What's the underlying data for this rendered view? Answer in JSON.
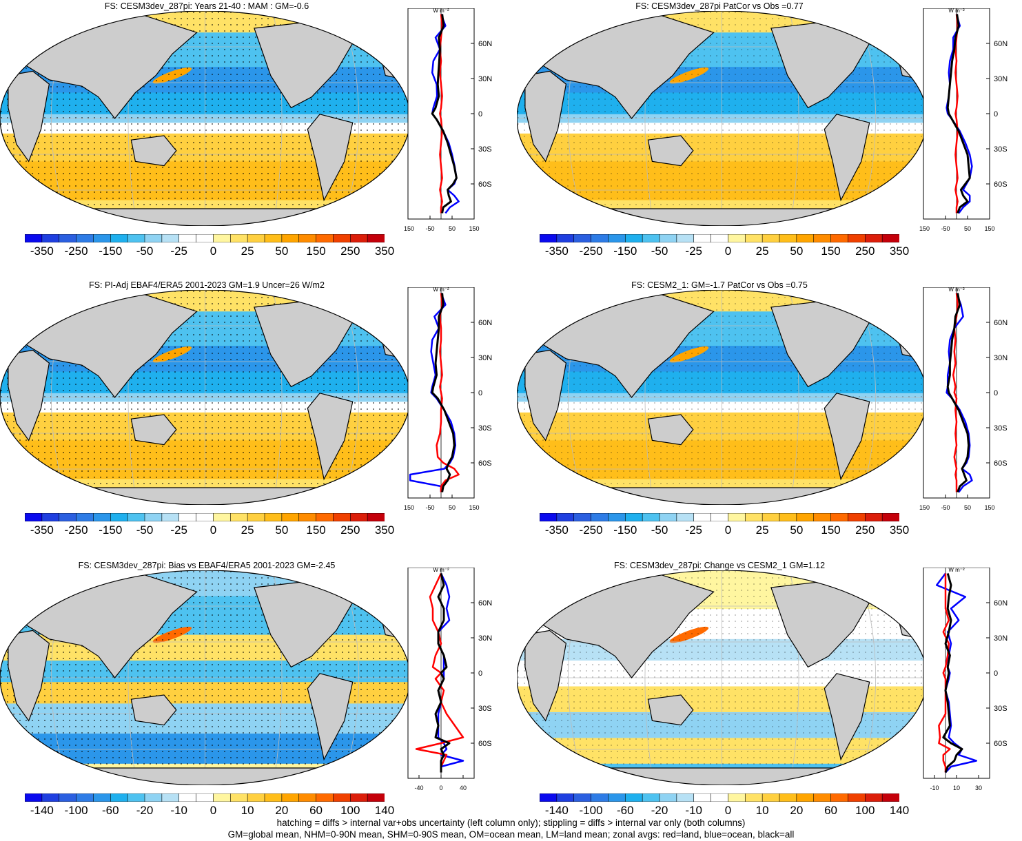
{
  "panels": [
    {
      "id": "p1",
      "title": "FS: CESM3dev_287pi: Years 21-40 : MAM : GM=-0.6",
      "column": "left",
      "row": 0,
      "scale": "main",
      "hatch": true
    },
    {
      "id": "p2",
      "title": "FS: CESM3dev_287pi PatCor vs Obs =0.77",
      "column": "right",
      "row": 0,
      "scale": "main",
      "hatch": false
    },
    {
      "id": "p3",
      "title": "FS: PI-Adj EBAF4/ERA5 2001-2023 GM=1.9 Uncer=26 W/m2",
      "column": "left",
      "row": 1,
      "scale": "main",
      "hatch": true
    },
    {
      "id": "p4",
      "title": "FS: CESM2_1: GM=-1.7 PatCor vs Obs =0.75",
      "column": "right",
      "row": 1,
      "scale": "main",
      "hatch": false
    },
    {
      "id": "p5",
      "title": "FS: CESM3dev_287pi: Bias vs EBAF4/ERA5 2001-2023 GM=-2.45",
      "column": "left",
      "row": 2,
      "scale": "diff",
      "hatch": true
    },
    {
      "id": "p6",
      "title": "FS: CESM3dev_287pi: Change vs CESM2_1 GM=1.12",
      "column": "right",
      "row": 2,
      "scale": "diff",
      "hatch": false
    }
  ],
  "colorbars": {
    "main": {
      "labels": [
        "-350",
        "-250",
        "-150",
        "-50",
        "-25",
        "0",
        "25",
        "50",
        "150",
        "250",
        "350"
      ]
    },
    "diff": {
      "labels": [
        "-140",
        "-100",
        "-60",
        "-20",
        "-10",
        "0",
        "10",
        "20",
        "60",
        "100",
        "140"
      ]
    },
    "colors": [
      "#0a0aee",
      "#1f3fe0",
      "#2b5fe0",
      "#2e7ce6",
      "#2b96ea",
      "#1fb0ee",
      "#4ec2f0",
      "#8fd3f3",
      "#b7e1f5",
      "#ffffff",
      "#ffffff",
      "#fff6a0",
      "#ffe266",
      "#ffd040",
      "#ffbe1a",
      "#ffa500",
      "#ff8c00",
      "#ff6a00",
      "#f04000",
      "#dc1e0a",
      "#c4000a"
    ]
  },
  "zonal": {
    "unit_label": "W m⁻²",
    "lat_ticks": [
      "60N",
      "30N",
      "0",
      "30S",
      "60S"
    ],
    "main_x_ticks": [
      "-150",
      "-50",
      "50",
      "150"
    ],
    "p5_x_ticks": [
      "-40",
      "0",
      "40"
    ],
    "p6_x_ticks": [
      "-10",
      "10",
      "30"
    ],
    "line_colors": {
      "land": "#ff0000",
      "ocean": "#0000ff",
      "all": "#000000"
    }
  },
  "chart_data": [
    {
      "type": "line",
      "title": "FS: CESM3dev_287pi: Years 21-40 : MAM : GM=-0.6",
      "xlabel": "W m⁻²",
      "xlim": [
        -150,
        150
      ],
      "x_ticks": [
        "-150",
        "-50",
        "50",
        "150"
      ],
      "y_ticks": [
        "60N",
        "30N",
        "0",
        "30S",
        "60S"
      ],
      "series": [
        {
          "latitudes": [
            85,
            75,
            65,
            55,
            45,
            35,
            25,
            15,
            5,
            0,
            -5,
            -15,
            -25,
            -35,
            -45,
            -55,
            -60,
            -65,
            -70,
            -75,
            -80,
            -85
          ],
          "values": [
            5,
            12,
            -10,
            -5,
            -8,
            -12,
            -15,
            -10,
            -25,
            -40,
            -20,
            10,
            30,
            45,
            60,
            70,
            55,
            30,
            35,
            45,
            10,
            5
          ]
        },
        {
          "latitudes": [
            85,
            75,
            65,
            55,
            45,
            35,
            25,
            15,
            5,
            0,
            -5,
            -15,
            -25,
            -35,
            -45,
            -55,
            -60,
            -65,
            -70,
            -75,
            -80,
            -85
          ],
          "values": [
            0,
            20,
            -25,
            -5,
            -35,
            -40,
            -20,
            -18,
            -35,
            -40,
            -20,
            10,
            35,
            50,
            62,
            70,
            60,
            30,
            60,
            80,
            40,
            20
          ]
        },
        {
          "latitudes": [
            85,
            75,
            65,
            55,
            45,
            35,
            25,
            15,
            5,
            0,
            -5,
            -15,
            -25,
            -35,
            -45,
            -55,
            -60,
            -65,
            -70,
            -75,
            -80,
            -85
          ],
          "values": [
            0,
            5,
            0,
            -5,
            0,
            -5,
            0,
            5,
            0,
            -5,
            0,
            5,
            0,
            -5,
            0,
            5,
            0,
            -5,
            0,
            5,
            0,
            0
          ]
        }
      ]
    },
    {
      "type": "line",
      "title": "FS: CESM3dev_287pi PatCor vs Obs =0.77",
      "xlabel": "W m⁻²",
      "xlim": [
        -150,
        150
      ],
      "x_ticks": [
        "-150",
        "-50",
        "50",
        "150"
      ],
      "y_ticks": [
        "60N",
        "30N",
        "0",
        "30S",
        "60S"
      ],
      "series": [
        {
          "latitudes": [
            85,
            75,
            65,
            55,
            45,
            35,
            25,
            15,
            5,
            0,
            -5,
            -15,
            -25,
            -35,
            -45,
            -55,
            -60,
            -65,
            -70,
            -75,
            -80,
            -85
          ],
          "values": [
            2,
            10,
            -5,
            -10,
            -20,
            -25,
            -30,
            -35,
            -40,
            -35,
            -20,
            10,
            30,
            50,
            55,
            60,
            40,
            20,
            30,
            50,
            15,
            5
          ]
        },
        {
          "latitudes": [
            85,
            75,
            65,
            55,
            45,
            35,
            25,
            15,
            5,
            0,
            -5,
            -15,
            -25,
            -35,
            -45,
            -55,
            -60,
            -65,
            -70,
            -75,
            -80,
            -85
          ],
          "values": [
            0,
            15,
            -15,
            -15,
            -30,
            -35,
            -30,
            -35,
            -45,
            -40,
            -20,
            15,
            40,
            60,
            70,
            60,
            45,
            30,
            60,
            60,
            30,
            10
          ]
        },
        {
          "latitudes": [
            85,
            75,
            65,
            55,
            45,
            35,
            25,
            15,
            5,
            0,
            -5,
            -15,
            -25,
            -35,
            -45,
            -55,
            -60,
            -65,
            -70,
            -75,
            -80,
            -85
          ],
          "values": [
            0,
            5,
            0,
            -5,
            0,
            -5,
            0,
            5,
            0,
            -5,
            0,
            5,
            0,
            -5,
            0,
            5,
            0,
            -5,
            0,
            5,
            0,
            0
          ]
        }
      ]
    },
    {
      "type": "line",
      "title": "FS: PI-Adj EBAF4/ERA5 2001-2023 GM=1.9 Uncer=26 W/m2",
      "xlabel": "W m⁻²",
      "xlim": [
        -150,
        150
      ],
      "x_ticks": [
        "-150",
        "-50",
        "50",
        "150"
      ],
      "y_ticks": [
        "60N",
        "30N",
        "0",
        "30S",
        "60S"
      ],
      "series": [
        {
          "latitudes": [
            85,
            75,
            65,
            55,
            45,
            35,
            25,
            15,
            5,
            0,
            -5,
            -15,
            -25,
            -35,
            -45,
            -55,
            -60,
            -65,
            -70,
            -75,
            -80,
            -85
          ],
          "values": [
            5,
            10,
            -10,
            -10,
            -15,
            -20,
            -25,
            -20,
            -35,
            -40,
            -15,
            15,
            35,
            55,
            60,
            50,
            35,
            25,
            40,
            30,
            10,
            5
          ]
        },
        {
          "latitudes": [
            85,
            75,
            65,
            55,
            45,
            35,
            25,
            15,
            5,
            0,
            -5,
            -15,
            -25,
            -35,
            -45,
            -55,
            -60,
            -65,
            -70,
            -75,
            -80,
            -85
          ],
          "values": [
            0,
            20,
            -30,
            -10,
            -40,
            -45,
            -35,
            -25,
            -40,
            -45,
            -20,
            15,
            45,
            60,
            65,
            55,
            40,
            15,
            -140,
            -140,
            0,
            0
          ]
        },
        {
          "latitudes": [
            85,
            75,
            65,
            55,
            45,
            35,
            25,
            15,
            5,
            0,
            -5,
            -15,
            -25,
            -35,
            -45,
            -55,
            -60,
            -65,
            -70,
            -75,
            -80,
            -85
          ],
          "values": [
            0,
            5,
            -5,
            0,
            0,
            -5,
            0,
            5,
            -5,
            0,
            5,
            0,
            0,
            -5,
            -20,
            -15,
            10,
            60,
            80,
            20,
            0,
            0
          ]
        }
      ]
    },
    {
      "type": "line",
      "title": "FS: CESM2_1: GM=-1.7 PatCor vs Obs =0.75",
      "xlabel": "W m⁻²",
      "xlim": [
        -150,
        150
      ],
      "x_ticks": [
        "-150",
        "-50",
        "50",
        "150"
      ],
      "y_ticks": [
        "60N",
        "30N",
        "0",
        "30S",
        "60S"
      ],
      "series": [
        {
          "latitudes": [
            85,
            75,
            65,
            55,
            45,
            35,
            25,
            15,
            5,
            0,
            -5,
            -15,
            -25,
            -35,
            -45,
            -55,
            -60,
            -65,
            -70,
            -75,
            -80,
            -85
          ],
          "values": [
            5,
            15,
            -5,
            -10,
            -20,
            -25,
            -30,
            -30,
            -40,
            -35,
            -20,
            10,
            30,
            50,
            55,
            50,
            40,
            25,
            35,
            45,
            15,
            5
          ]
        },
        {
          "latitudes": [
            85,
            75,
            65,
            55,
            45,
            35,
            25,
            15,
            5,
            0,
            -5,
            -15,
            -25,
            -35,
            -45,
            -55,
            -60,
            -65,
            -70,
            -75,
            -80,
            -85
          ],
          "values": [
            0,
            20,
            30,
            -10,
            -30,
            -35,
            -30,
            -40,
            -40,
            -45,
            -20,
            15,
            40,
            55,
            60,
            55,
            45,
            25,
            60,
            70,
            30,
            10
          ]
        },
        {
          "latitudes": [
            85,
            75,
            65,
            55,
            45,
            35,
            25,
            15,
            5,
            0,
            -5,
            -15,
            -25,
            -35,
            -45,
            -55,
            -60,
            -65,
            -70,
            -75,
            -80,
            -85
          ],
          "values": [
            0,
            5,
            0,
            -10,
            -5,
            -10,
            -5,
            -15,
            -5,
            -10,
            0,
            -5,
            0,
            -5,
            0,
            -10,
            -5,
            0,
            -5,
            0,
            0,
            0
          ]
        }
      ]
    },
    {
      "type": "line",
      "title": "FS: CESM3dev_287pi: Bias vs EBAF4/ERA5 2001-2023 GM=-2.45",
      "xlabel": "W m⁻²",
      "xlim": [
        -60,
        60
      ],
      "x_ticks": [
        "-40",
        "0",
        "40"
      ],
      "y_ticks": [
        "60N",
        "30N",
        "0",
        "30S",
        "60S"
      ],
      "series": [
        {
          "latitudes": [
            85,
            75,
            65,
            55,
            45,
            35,
            25,
            15,
            5,
            0,
            -5,
            -15,
            -25,
            -35,
            -45,
            -55,
            -60,
            -65,
            -70,
            -75,
            -80,
            -85
          ],
          "values": [
            0,
            5,
            -5,
            5,
            5,
            -5,
            -5,
            5,
            10,
            0,
            5,
            -5,
            0,
            -10,
            -5,
            -10,
            15,
            0,
            5,
            0,
            0,
            0
          ]
        },
        {
          "latitudes": [
            85,
            75,
            65,
            55,
            45,
            35,
            25,
            15,
            5,
            0,
            -5,
            -15,
            -25,
            -35,
            -45,
            -55,
            -60,
            -65,
            -70,
            -75,
            -80,
            -85
          ],
          "values": [
            0,
            10,
            15,
            10,
            15,
            -5,
            -5,
            5,
            5,
            5,
            5,
            -5,
            0,
            -5,
            -5,
            -5,
            5,
            10,
            0,
            40,
            0,
            0
          ]
        },
        {
          "latitudes": [
            85,
            75,
            65,
            55,
            45,
            35,
            25,
            15,
            5,
            0,
            -5,
            -15,
            -25,
            -35,
            -45,
            -55,
            -60,
            -65,
            -70,
            -75,
            -80,
            -85
          ],
          "values": [
            0,
            -10,
            -20,
            -15,
            -15,
            -5,
            0,
            -10,
            -15,
            0,
            -10,
            5,
            0,
            10,
            25,
            40,
            0,
            -45,
            10,
            5,
            0,
            0
          ]
        }
      ]
    },
    {
      "type": "line",
      "title": "FS: CESM3dev_287pi: Change vs CESM2_1 GM=1.12",
      "xlabel": "W m⁻²",
      "xlim": [
        -20,
        40
      ],
      "x_ticks": [
        "-10",
        "10",
        "30"
      ],
      "y_ticks": [
        "60N",
        "30N",
        "0",
        "30S",
        "60S"
      ],
      "series": [
        {
          "latitudes": [
            85,
            75,
            65,
            55,
            45,
            35,
            25,
            15,
            5,
            0,
            -5,
            -15,
            -25,
            -35,
            -45,
            -55,
            -60,
            -65,
            -70,
            -75,
            -80,
            -85
          ],
          "values": [
            2,
            5,
            3,
            2,
            5,
            3,
            0,
            4,
            2,
            3,
            2,
            0,
            2,
            3,
            4,
            -2,
            5,
            15,
            10,
            8,
            2,
            0
          ]
        },
        {
          "latitudes": [
            85,
            75,
            65,
            55,
            45,
            35,
            25,
            15,
            5,
            0,
            -5,
            -15,
            -25,
            -35,
            -45,
            -55,
            -60,
            -65,
            -70,
            -75,
            -80,
            -85
          ],
          "values": [
            0,
            -8,
            18,
            5,
            12,
            2,
            5,
            3,
            2,
            4,
            3,
            0,
            3,
            4,
            5,
            3,
            8,
            15,
            12,
            28,
            5,
            0
          ]
        },
        {
          "latitudes": [
            85,
            75,
            65,
            55,
            45,
            35,
            25,
            15,
            5,
            0,
            -5,
            -15,
            -25,
            -35,
            -45,
            -55,
            -60,
            -65,
            -70,
            -75,
            -80,
            -85
          ],
          "values": [
            0,
            0,
            0,
            0,
            3,
            -2,
            3,
            2,
            0,
            -2,
            0,
            0,
            0,
            0,
            -6,
            -5,
            -6,
            4,
            -2,
            -2,
            0,
            0
          ]
        }
      ]
    }
  ],
  "footer": {
    "line1": "hatching = diffs > internal var+obs uncertainty (left column only); stippling = diffs > internal var only (both columns)",
    "line2": "GM=global mean, NHM=0-90N mean, SHM=0-90S mean, OM=ocean mean, LM=land mean; zonal avgs: red=land, blue=ocean, black=all"
  }
}
